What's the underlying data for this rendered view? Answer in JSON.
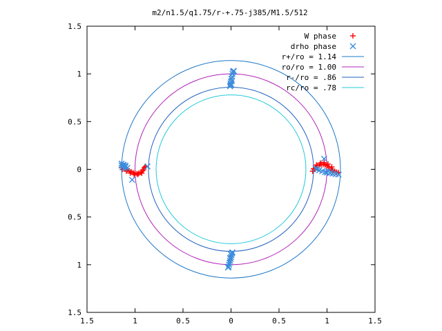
{
  "chart_data": {
    "type": "scatter",
    "title": "m2/n1.5/q1.75/r-+.75-j385/M1.5/512",
    "xlabel": "",
    "ylabel": "",
    "xlim": [
      -1.5,
      1.5
    ],
    "ylim": [
      -1.5,
      1.5
    ],
    "x_ticks": [
      {
        "value": -1.5,
        "label": "1.5"
      },
      {
        "value": -1.0,
        "label": "1"
      },
      {
        "value": -0.5,
        "label": "0.5"
      },
      {
        "value": 0.0,
        "label": "0"
      },
      {
        "value": 0.5,
        "label": "0.5"
      },
      {
        "value": 1.0,
        "label": "1"
      },
      {
        "value": 1.5,
        "label": "1.5"
      }
    ],
    "y_ticks": [
      {
        "value": 1.5,
        "label": "1.5"
      },
      {
        "value": 1.0,
        "label": "1"
      },
      {
        "value": 0.5,
        "label": "0.5"
      },
      {
        "value": 0.0,
        "label": "0"
      },
      {
        "value": -0.5,
        "label": "0.5"
      },
      {
        "value": -1.0,
        "label": "1"
      },
      {
        "value": -1.5,
        "label": "1.5"
      }
    ],
    "grid": false,
    "legend_position": "top-right",
    "circles": [
      {
        "name": "r+/ro = 1.14",
        "radius": 1.14,
        "color": "#1e78c8"
      },
      {
        "name": "ro/ro = 1.00",
        "radius": 1.0,
        "color": "#b020b8"
      },
      {
        "name": "r-/ro = .86",
        "radius": 0.86,
        "color": "#2060c0"
      },
      {
        "name": "rc/ro = .78",
        "radius": 0.78,
        "color": "#20c8d8"
      }
    ],
    "series": [
      {
        "name": "W phase",
        "marker": "plus",
        "color": "#ff0000",
        "points": [
          [
            -1.14,
            0.02
          ],
          [
            -1.12,
            0.015
          ],
          [
            -1.1,
            0.005
          ],
          [
            -1.08,
            -0.005
          ],
          [
            -1.06,
            -0.015
          ],
          [
            -1.04,
            -0.025
          ],
          [
            -1.02,
            -0.035
          ],
          [
            -1.0,
            -0.04
          ],
          [
            -0.98,
            -0.045
          ],
          [
            -0.96,
            -0.04
          ],
          [
            -0.94,
            -0.03
          ],
          [
            -0.92,
            -0.015
          ],
          [
            -0.91,
            0.0
          ],
          [
            -0.9,
            0.02
          ],
          [
            -0.89,
            0.03
          ],
          [
            -1.13,
            0.0
          ],
          [
            -1.09,
            -0.02
          ],
          [
            -1.05,
            -0.04
          ],
          [
            -1.01,
            -0.055
          ],
          [
            -0.97,
            -0.055
          ],
          [
            -0.93,
            -0.04
          ],
          [
            0.85,
            -0.02
          ],
          [
            0.87,
            0.0
          ],
          [
            0.88,
            0.02
          ],
          [
            0.9,
            0.035
          ],
          [
            0.92,
            0.045
          ],
          [
            0.94,
            0.05
          ],
          [
            0.96,
            0.05
          ],
          [
            0.98,
            0.045
          ],
          [
            1.0,
            0.035
          ],
          [
            1.02,
            0.02
          ],
          [
            1.04,
            0.005
          ],
          [
            1.06,
            -0.01
          ],
          [
            1.08,
            -0.02
          ],
          [
            1.1,
            -0.03
          ],
          [
            1.12,
            -0.035
          ],
          [
            0.86,
            0.005
          ],
          [
            0.89,
            0.045
          ],
          [
            0.93,
            0.065
          ],
          [
            0.97,
            0.07
          ],
          [
            1.01,
            0.055
          ],
          [
            1.05,
            0.025
          ]
        ]
      },
      {
        "name": "drho phase",
        "marker": "x",
        "color": "#3c8cdc",
        "points": [
          [
            -1.14,
            0.04
          ],
          [
            -1.12,
            0.035
          ],
          [
            -1.1,
            0.025
          ],
          [
            -1.08,
            0.015
          ],
          [
            -1.14,
            0.06
          ],
          [
            -1.12,
            0.05
          ],
          [
            -1.1,
            0.04
          ],
          [
            -1.13,
            0.02
          ],
          [
            -1.11,
            0.01
          ],
          [
            -0.87,
            0.03
          ],
          [
            -1.03,
            -0.11
          ],
          [
            0.88,
            0.01
          ],
          [
            0.9,
            0.0
          ],
          [
            0.92,
            -0.01
          ],
          [
            0.95,
            -0.02
          ],
          [
            0.98,
            -0.03
          ],
          [
            1.0,
            -0.035
          ],
          [
            1.03,
            -0.04
          ],
          [
            1.06,
            -0.045
          ],
          [
            1.09,
            -0.05
          ],
          [
            1.12,
            -0.055
          ],
          [
            0.97,
            0.11
          ],
          [
            1.01,
            -0.02
          ],
          [
            1.04,
            -0.03
          ],
          [
            -0.01,
            0.87
          ],
          [
            -0.005,
            0.9
          ],
          [
            0.0,
            0.92
          ],
          [
            0.005,
            0.95
          ],
          [
            0.01,
            0.97
          ],
          [
            0.015,
            1.0
          ],
          [
            0.02,
            1.02
          ],
          [
            0.025,
            1.03
          ],
          [
            0.03,
            1.03
          ],
          [
            -0.005,
            0.88
          ],
          [
            0.0,
            0.89
          ],
          [
            0.01,
            0.93
          ],
          [
            -0.03,
            -1.03
          ],
          [
            -0.025,
            -1.02
          ],
          [
            -0.02,
            -1.0
          ],
          [
            -0.015,
            -0.98
          ],
          [
            -0.01,
            -0.96
          ],
          [
            -0.005,
            -0.94
          ],
          [
            0.0,
            -0.92
          ],
          [
            0.005,
            -0.9
          ],
          [
            0.01,
            -0.88
          ],
          [
            0.015,
            -0.87
          ],
          [
            0.0,
            -0.89
          ],
          [
            -0.01,
            -0.93
          ]
        ]
      }
    ]
  }
}
